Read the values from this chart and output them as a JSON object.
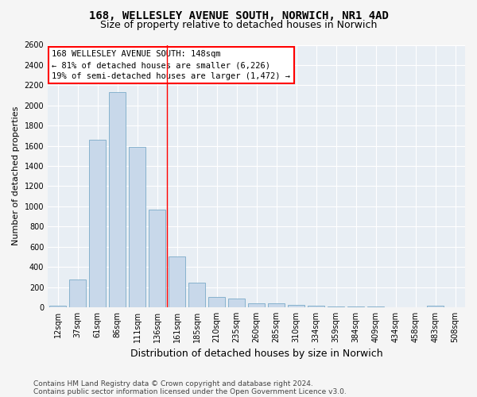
{
  "title_line1": "168, WELLESLEY AVENUE SOUTH, NORWICH, NR1 4AD",
  "title_line2": "Size of property relative to detached houses in Norwich",
  "xlabel": "Distribution of detached houses by size in Norwich",
  "ylabel": "Number of detached properties",
  "bar_color": "#c8d8ea",
  "bar_edge_color": "#7aaac8",
  "categories": [
    "12sqm",
    "37sqm",
    "61sqm",
    "86sqm",
    "111sqm",
    "136sqm",
    "161sqm",
    "185sqm",
    "210sqm",
    "235sqm",
    "260sqm",
    "285sqm",
    "310sqm",
    "334sqm",
    "359sqm",
    "384sqm",
    "409sqm",
    "434sqm",
    "458sqm",
    "483sqm",
    "508sqm"
  ],
  "values": [
    18,
    278,
    1660,
    2130,
    1590,
    970,
    500,
    240,
    105,
    85,
    40,
    35,
    22,
    18,
    8,
    5,
    4,
    2,
    1,
    14,
    2
  ],
  "ylim": [
    0,
    2600
  ],
  "yticks": [
    0,
    200,
    400,
    600,
    800,
    1000,
    1200,
    1400,
    1600,
    1800,
    2000,
    2200,
    2400,
    2600
  ],
  "vline_x": 5.5,
  "annotation_text": "168 WELLESLEY AVENUE SOUTH: 148sqm\n← 81% of detached houses are smaller (6,226)\n19% of semi-detached houses are larger (1,472) →",
  "annotation_box_color": "white",
  "annotation_box_edge": "red",
  "footer_line1": "Contains HM Land Registry data © Crown copyright and database right 2024.",
  "footer_line2": "Contains public sector information licensed under the Open Government Licence v3.0.",
  "plot_bg_color": "#e8eef4",
  "fig_bg_color": "#f5f5f5",
  "grid_color": "#ffffff",
  "title_fontsize": 10,
  "subtitle_fontsize": 9,
  "tick_fontsize": 7,
  "xlabel_fontsize": 9,
  "ylabel_fontsize": 8,
  "footer_fontsize": 6.5,
  "annotation_fontsize": 7.5
}
